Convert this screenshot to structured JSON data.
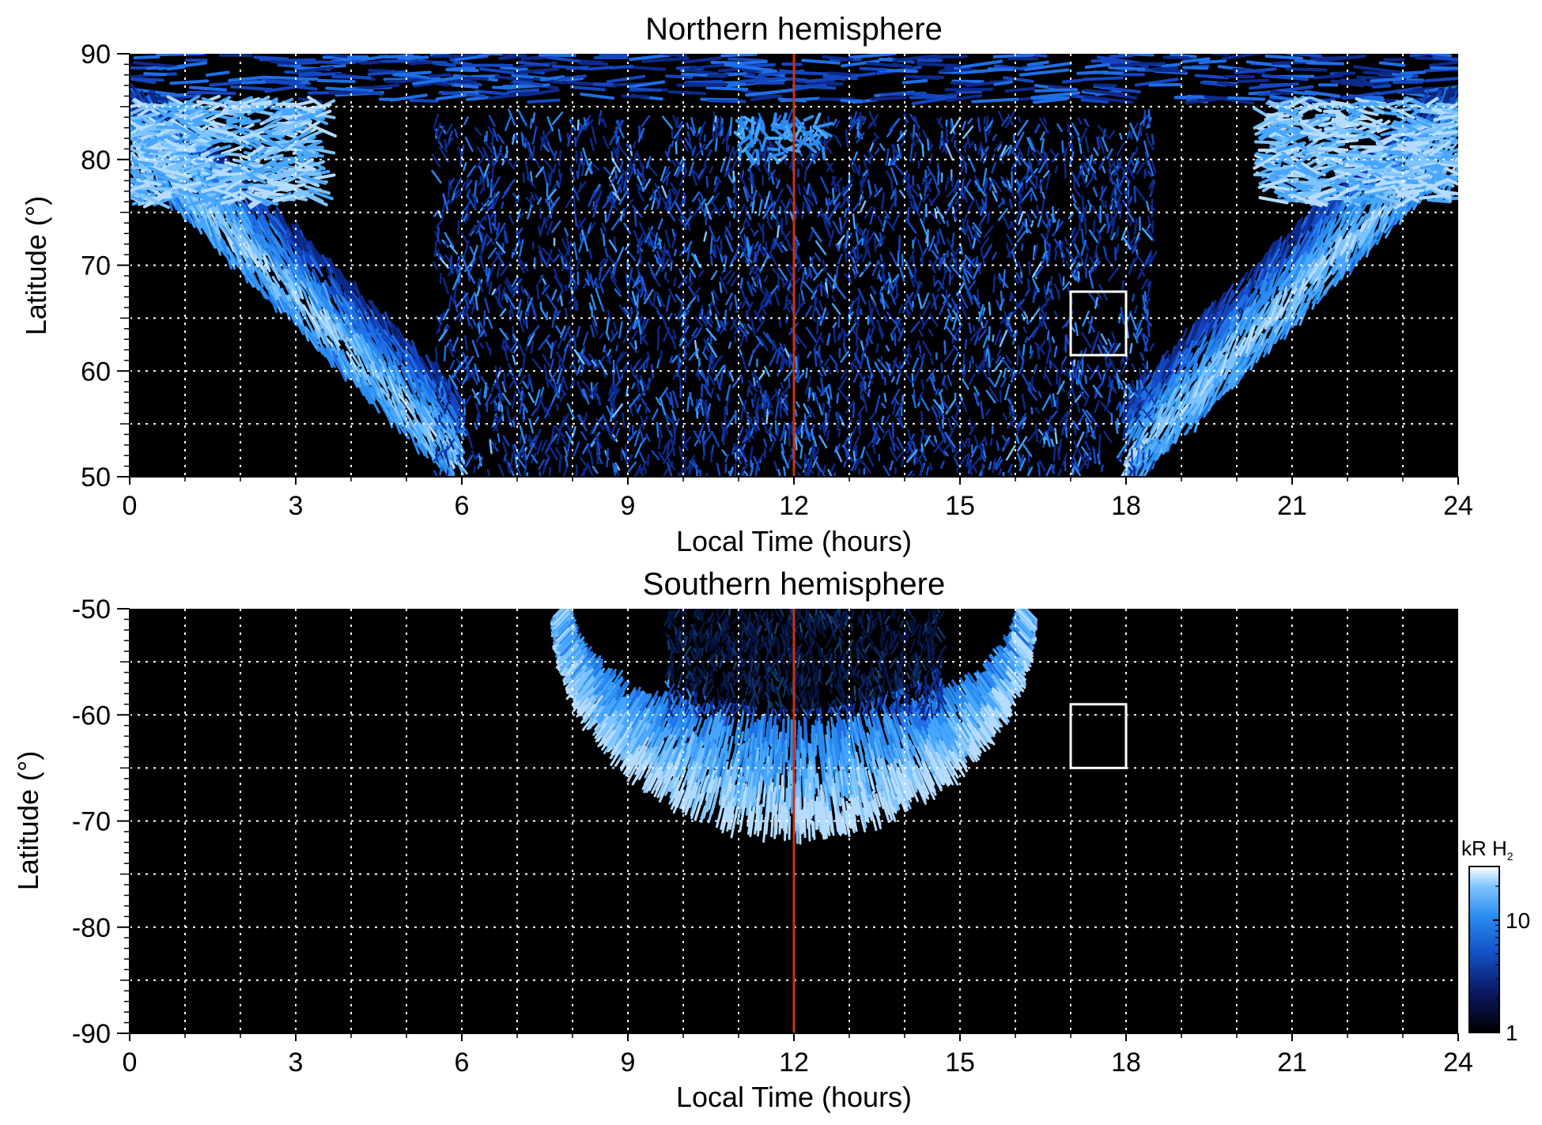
{
  "chart_data": [
    {
      "type": "heatmap",
      "title": "Northern hemisphere",
      "xlabel": "Local Time (hours)",
      "ylabel": "Latitude (°)",
      "xlim": [
        0,
        24
      ],
      "ylim": [
        50,
        90
      ],
      "xticks": [
        "0",
        "3",
        "6",
        "9",
        "12",
        "15",
        "18",
        "21",
        "24"
      ],
      "yticks": [
        "50",
        "60",
        "70",
        "80",
        "90"
      ],
      "x_grid_step_hours": 1,
      "y_grid_step_deg": 5,
      "grid": true,
      "marker_line": {
        "x": 12,
        "color": "#cc3311"
      },
      "box": {
        "x": [
          17,
          18
        ],
        "y": [
          61.5,
          67.5
        ],
        "color": "#ffffff"
      },
      "features": [
        {
          "kind": "auroral oval",
          "lat_at_0_24h": [
            74,
            86
          ],
          "lat_near_5h_19h": [
            50,
            70
          ],
          "intensity_kR": "5-20"
        },
        {
          "kind": "dayside noisy emission",
          "lt_range": [
            6,
            18
          ],
          "lat_range": [
            50,
            85
          ],
          "intensity_kR": "1-5"
        },
        {
          "kind": "cusp spot",
          "lt": 12,
          "lat": 82
        }
      ]
    },
    {
      "type": "heatmap",
      "title": "Southern hemisphere",
      "xlabel": "Local Time (hours)",
      "ylabel": "Latitude (°)",
      "xlim": [
        0,
        24
      ],
      "ylim": [
        -90,
        -50
      ],
      "xticks": [
        "0",
        "3",
        "6",
        "9",
        "12",
        "15",
        "18",
        "21",
        "24"
      ],
      "yticks": [
        "-90",
        "-80",
        "-70",
        "-60",
        "-50"
      ],
      "x_grid_step_hours": 1,
      "y_grid_step_deg": 5,
      "grid": true,
      "marker_line": {
        "x": 12,
        "color": "#cc3311"
      },
      "box": {
        "x": [
          17,
          18
        ],
        "y": [
          -65,
          -59
        ],
        "color": "#ffffff"
      },
      "features": [
        {
          "kind": "auroral oval",
          "lt_range": [
            8,
            16.5
          ],
          "lat_at_12h": [
            -71,
            -61
          ],
          "intensity_kR": "5-20"
        },
        {
          "kind": "polar cap noisy emission",
          "lt_range": [
            9.5,
            15.5
          ],
          "lat_range": [
            -60,
            -50
          ],
          "intensity_kR": "1-5"
        }
      ]
    }
  ],
  "colorbar": {
    "title": "kR H",
    "subscript": "2",
    "ticks": [
      "1",
      "10"
    ],
    "scale": "log",
    "range": [
      1,
      30
    ],
    "colors": [
      "#000000",
      "#0a1a66",
      "#1456cc",
      "#2a8cf0",
      "#7ec4ff",
      "#ffffff"
    ]
  },
  "colors": {
    "plot_background": "#000000",
    "grid": "#ffffff",
    "aurora_bright": "#3a9cff",
    "aurora_dim": "#0d2f9e"
  }
}
